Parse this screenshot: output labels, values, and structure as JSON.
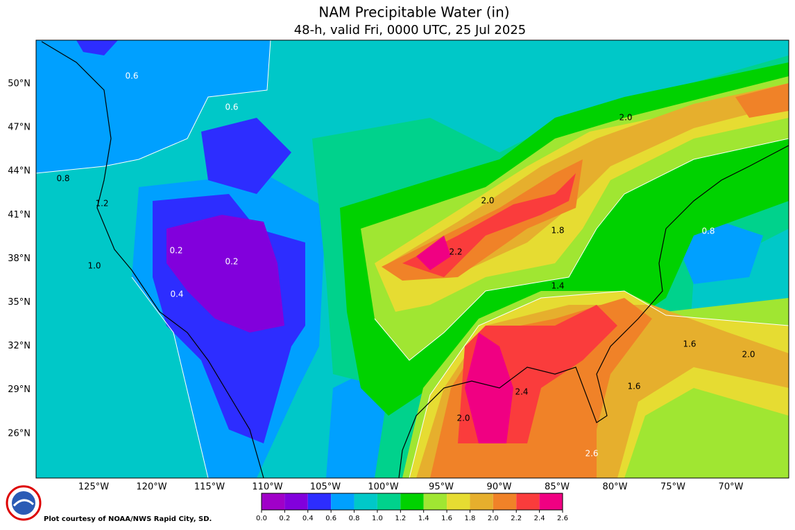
{
  "header": {
    "title": "NAM Precipitable Water (in)",
    "subtitle": "48-h, valid Fri, 0000 UTC, 25 Jul 2025"
  },
  "map": {
    "lat_labels": [
      "50°N",
      "47°N",
      "44°N",
      "41°N",
      "38°N",
      "35°N",
      "32°N",
      "29°N",
      "26°N"
    ],
    "lon_labels": [
      "125°W",
      "120°W",
      "115°W",
      "110°W",
      "105°W",
      "100°W",
      "95°W",
      "90°W",
      "85°W",
      "80°W",
      "75°W",
      "70°W"
    ],
    "contour_labels": [
      "0.6",
      "0.6",
      "0.8",
      "1.0",
      "0.2",
      "0.2",
      "0.4",
      "1.2",
      "2.4",
      "2.2",
      "2.0",
      "1.8",
      "1.6",
      "2.0",
      "0.8",
      "1.4",
      "2.6",
      "2.0",
      "1.6",
      "2.0"
    ]
  },
  "colorbar": {
    "ticks": [
      "0.0",
      "0.2",
      "0.4",
      "0.6",
      "0.8",
      "1.0",
      "1.2",
      "1.4",
      "1.6",
      "1.8",
      "2.0",
      "2.2",
      "2.4",
      "2.6"
    ],
    "colors": [
      "#a000c8",
      "#8200dc",
      "#2d2dff",
      "#00a0ff",
      "#00c8c8",
      "#00d28c",
      "#00d200",
      "#a0e632",
      "#e6dc32",
      "#e6af2d",
      "#f08228",
      "#fa3c3c",
      "#f00082"
    ]
  },
  "credit": "Plot courtesy of NOAA/NWS Rapid City, SD."
}
